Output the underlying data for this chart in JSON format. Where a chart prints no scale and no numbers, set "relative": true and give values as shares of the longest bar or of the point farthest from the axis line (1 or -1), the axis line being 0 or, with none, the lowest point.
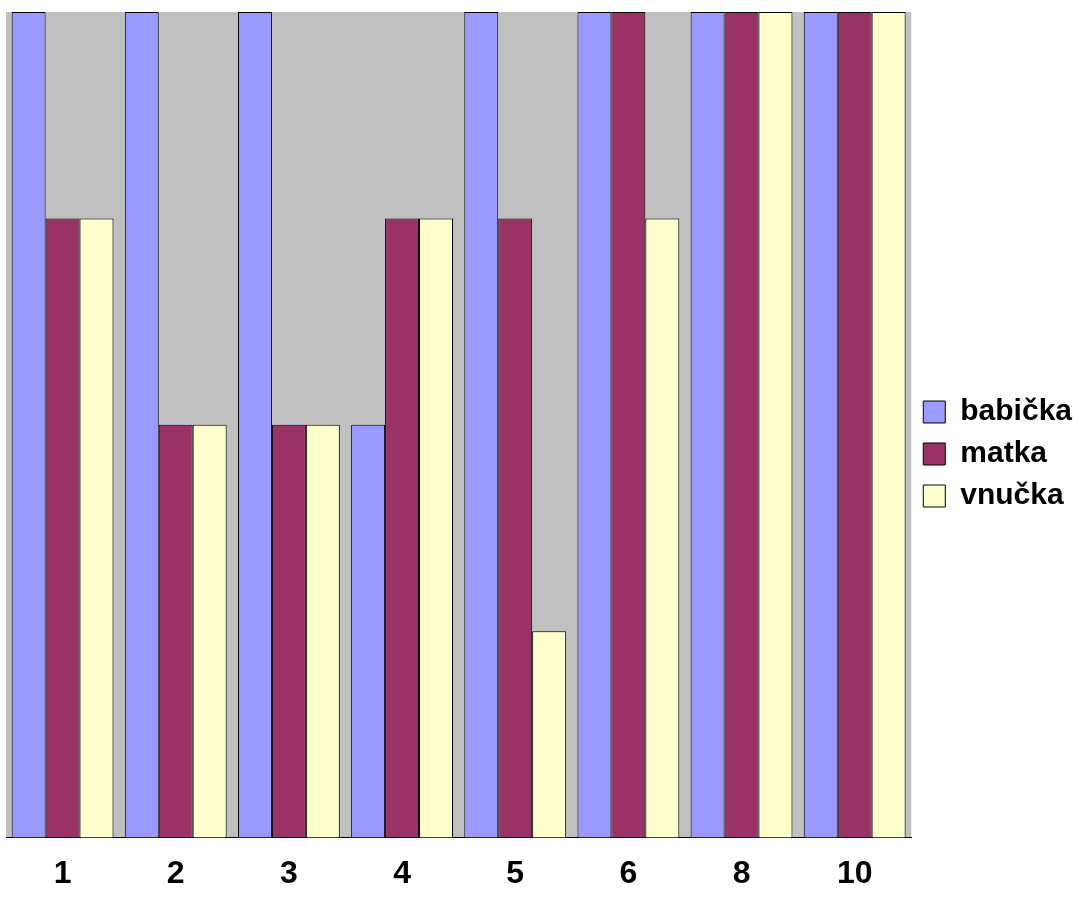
{
  "chart_data": {
    "type": "bar",
    "relative": true,
    "categories": [
      "1",
      "2",
      "3",
      "4",
      "5",
      "6",
      "8",
      "10"
    ],
    "series": [
      {
        "name": "babička",
        "color": "#9999ff",
        "values": [
          1,
          1,
          1,
          0.5,
          1,
          1,
          1,
          1
        ]
      },
      {
        "name": "matka",
        "color": "#993366",
        "values": [
          0.75,
          0.5,
          0.5,
          0.75,
          0.75,
          1,
          1,
          1
        ]
      },
      {
        "name": "vnučka",
        "color": "#ffffcc",
        "values": [
          0.75,
          0.5,
          0.5,
          0.75,
          0.25,
          0.75,
          1,
          1
        ]
      }
    ],
    "legend": "right",
    "grid": false
  }
}
